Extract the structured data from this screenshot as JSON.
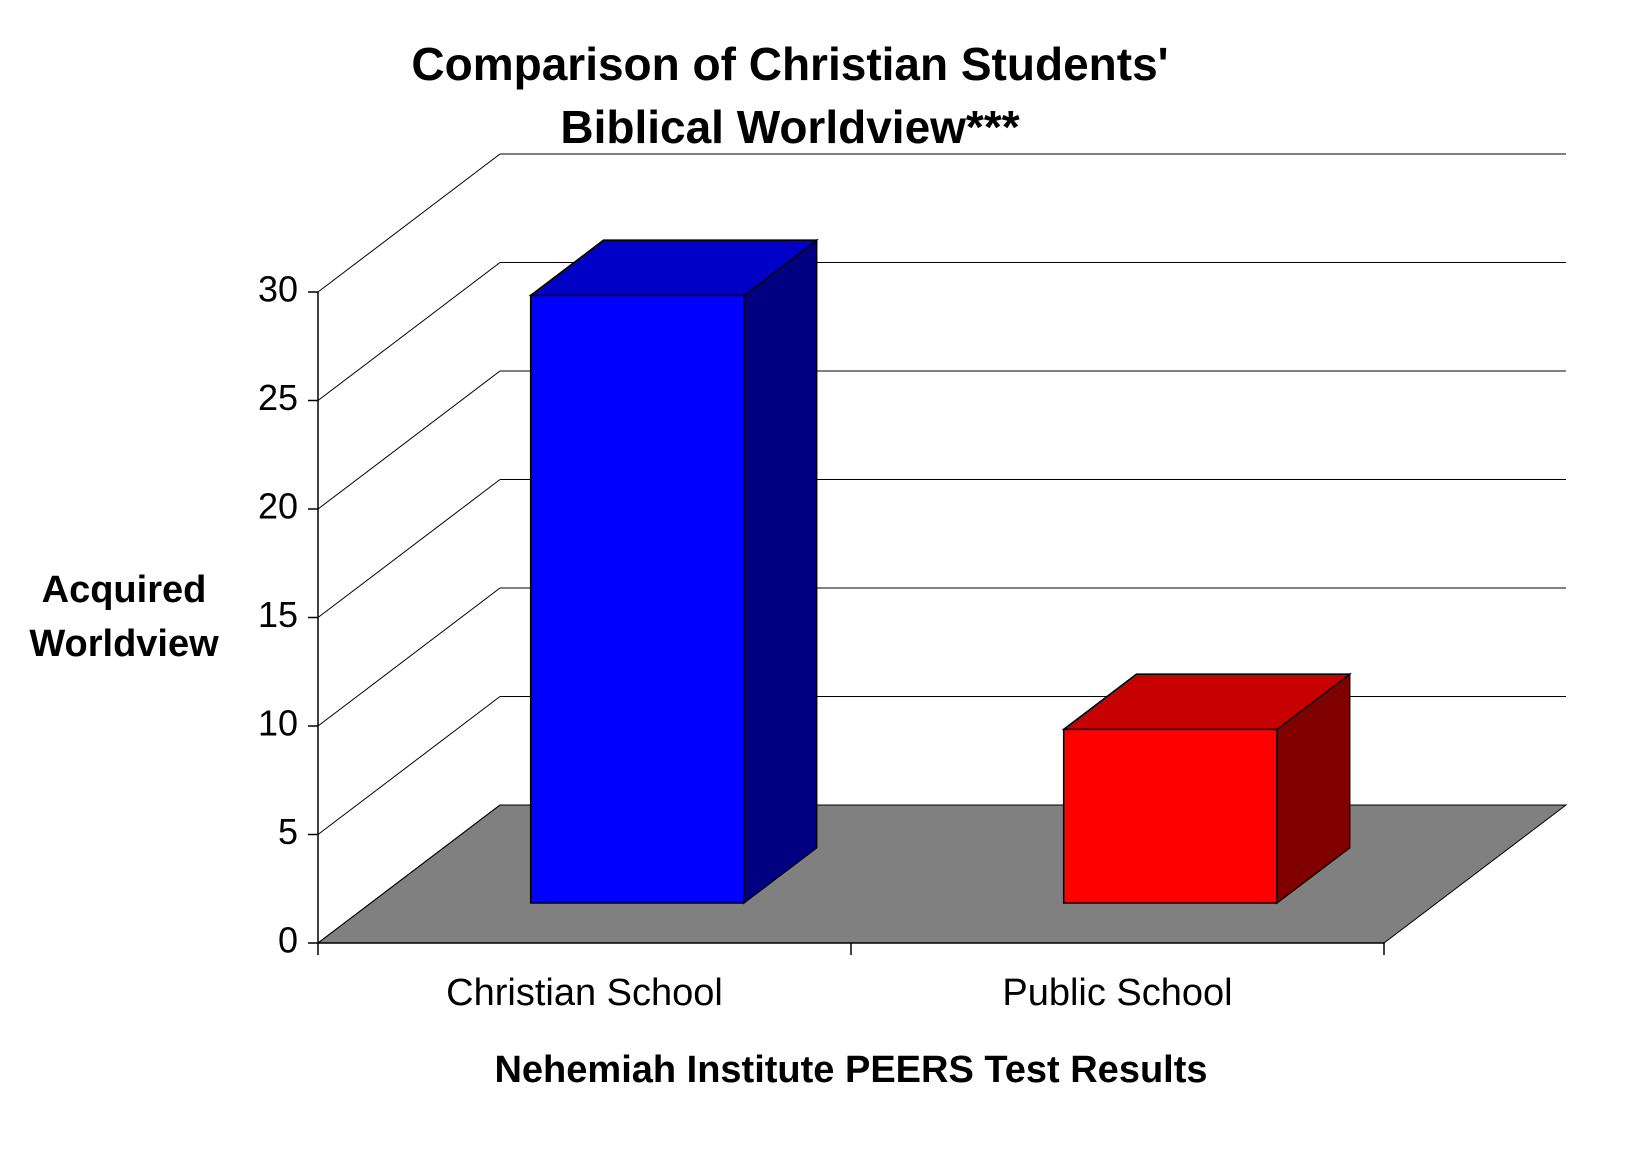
{
  "chart_data": {
    "type": "bar3d",
    "title": [
      "Comparison of Christian Students'",
      "Biblical Worldview***"
    ],
    "x_label": "Nehemiah Institute PEERS Test Results",
    "y_label": [
      "Acquired",
      "Worldview"
    ],
    "categories": [
      "Christian School",
      "Public School"
    ],
    "values": [
      28,
      8
    ],
    "colors": [
      "#0000FF",
      "#FF0000"
    ],
    "ylim": [
      0,
      30
    ],
    "yticks": [
      0,
      5,
      10,
      15,
      20,
      25,
      30
    ],
    "grid": true
  }
}
